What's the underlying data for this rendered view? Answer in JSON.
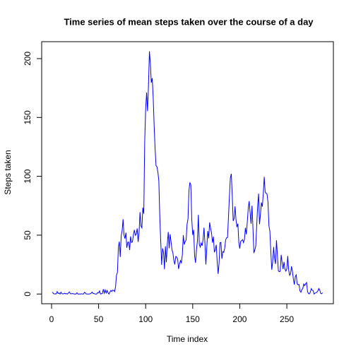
{
  "chart_data": {
    "type": "line",
    "title": "Time series of mean steps taken over the course of a day",
    "x_label": "Time index",
    "y_label": "Steps taken",
    "series": [
      {
        "name": "mean steps",
        "color": "#0000ff",
        "values": [
          1.7,
          0.3,
          0.1,
          0.2,
          0.1,
          2.1,
          0.5,
          0.9,
          0,
          1.5,
          0.3,
          0.1,
          0.3,
          0.7,
          0.2,
          0.3,
          0,
          1.1,
          1.8,
          0.2,
          0.2,
          0.4,
          0.3,
          0,
          0,
          0,
          1.1,
          0,
          0,
          0.1,
          0,
          0.2,
          0,
          0,
          1.5,
          0.9,
          0,
          0,
          0,
          0,
          0.2,
          0.6,
          1.6,
          0.6,
          0.5,
          0.1,
          0,
          0,
          1.2,
          0.9,
          2.6,
          0,
          0.3,
          0.4,
          4.1,
          0.7,
          3.5,
          0.8,
          3.1,
          1.1,
          0,
          1.6,
          3,
          2.2,
          3.3,
          3,
          2.1,
          6.1,
          16,
          18.3,
          39.5,
          44.5,
          31.5,
          49.3,
          53.8,
          63.5,
          50,
          47.1,
          52.2,
          39.3,
          44,
          44.2,
          37.4,
          49,
          43.8,
          44.4,
          50.5,
          54.5,
          49.9,
          51,
          55.7,
          44.3,
          52.3,
          69.5,
          57.8,
          56.2,
          73.4,
          68.2,
          129.4,
          157.5,
          171.2,
          155.4,
          177.3,
          206.2,
          195.9,
          179.6,
          183.4,
          167,
          143.5,
          124,
          109.1,
          108.1,
          103.7,
          96,
          66.2,
          45.2,
          24.8,
          38.8,
          35,
          21.1,
          40.6,
          27,
          42.4,
          52.7,
          38.9,
          50.8,
          44.3,
          37.4,
          34.7,
          28.3,
          25.1,
          31.9,
          31.4,
          29.7,
          21.3,
          25.5,
          28.4,
          26.5,
          33.4,
          50,
          42,
          44.6,
          46,
          59.2,
          63.9,
          87.7,
          94.8,
          92.8,
          63.4,
          50.2,
          54.5,
          32.4,
          26.5,
          37.7,
          45.1,
          67.3,
          42.3,
          39.9,
          43.3,
          41,
          46.2,
          56.4,
          42.8,
          25.1,
          40,
          53.5,
          47.3,
          60.8,
          55.8,
          52,
          43.6,
          48.7,
          35.5,
          37.5,
          41.8,
          27.5,
          17.1,
          26.1,
          43.6,
          43.8,
          30,
          36.1,
          35.5,
          38.8,
          46,
          47.8,
          48.1,
          65.3,
          82.9,
          98.7,
          102.1,
          84,
          62.1,
          64.1,
          74.5,
          63.2,
          56.9,
          59.8,
          43.9,
          38.6,
          44.7,
          45.5,
          46.2,
          43.7,
          46.6,
          56.3,
          50.7,
          61.2,
          72.7,
          78.9,
          68.9,
          59.7,
          75.1,
          56.5,
          34.8,
          37.5,
          40.7,
          58,
          74.7,
          85.3,
          59.3,
          67.8,
          77.7,
          74.2,
          85.3,
          99.5,
          86.6,
          85.6,
          84.9,
          77.8,
          58,
          53.4,
          36.3,
          20.7,
          27.4,
          40,
          30.2,
          25.5,
          45.7,
          33.5,
          19.6,
          19,
          19.3,
          33.3,
          26.8,
          21.2,
          27.3,
          21.3,
          19.5,
          21.3,
          32.3,
          20.2,
          15.9,
          17.2,
          23.5,
          19.2,
          12.5,
          8,
          14.7,
          16.3,
          8.7,
          7.8,
          8.1,
          2.6,
          1.5,
          3.7,
          4.8,
          8.5,
          7.1,
          8.7,
          9.8,
          2.2,
          0.3,
          0.1,
          1.6,
          4.6,
          3.3,
          2.8,
          0,
          0.8,
          1,
          1.6,
          2.6,
          4.7,
          3.3,
          0.6,
          0.2,
          1.1
        ]
      }
    ],
    "xlim": [
      -10.5,
      299.5
    ],
    "xticks": [
      0,
      50,
      100,
      150,
      200,
      250
    ],
    "ylim": [
      -8.25,
      214.4
    ],
    "yticks": [
      0,
      50,
      100,
      150,
      200
    ],
    "grid": false
  }
}
